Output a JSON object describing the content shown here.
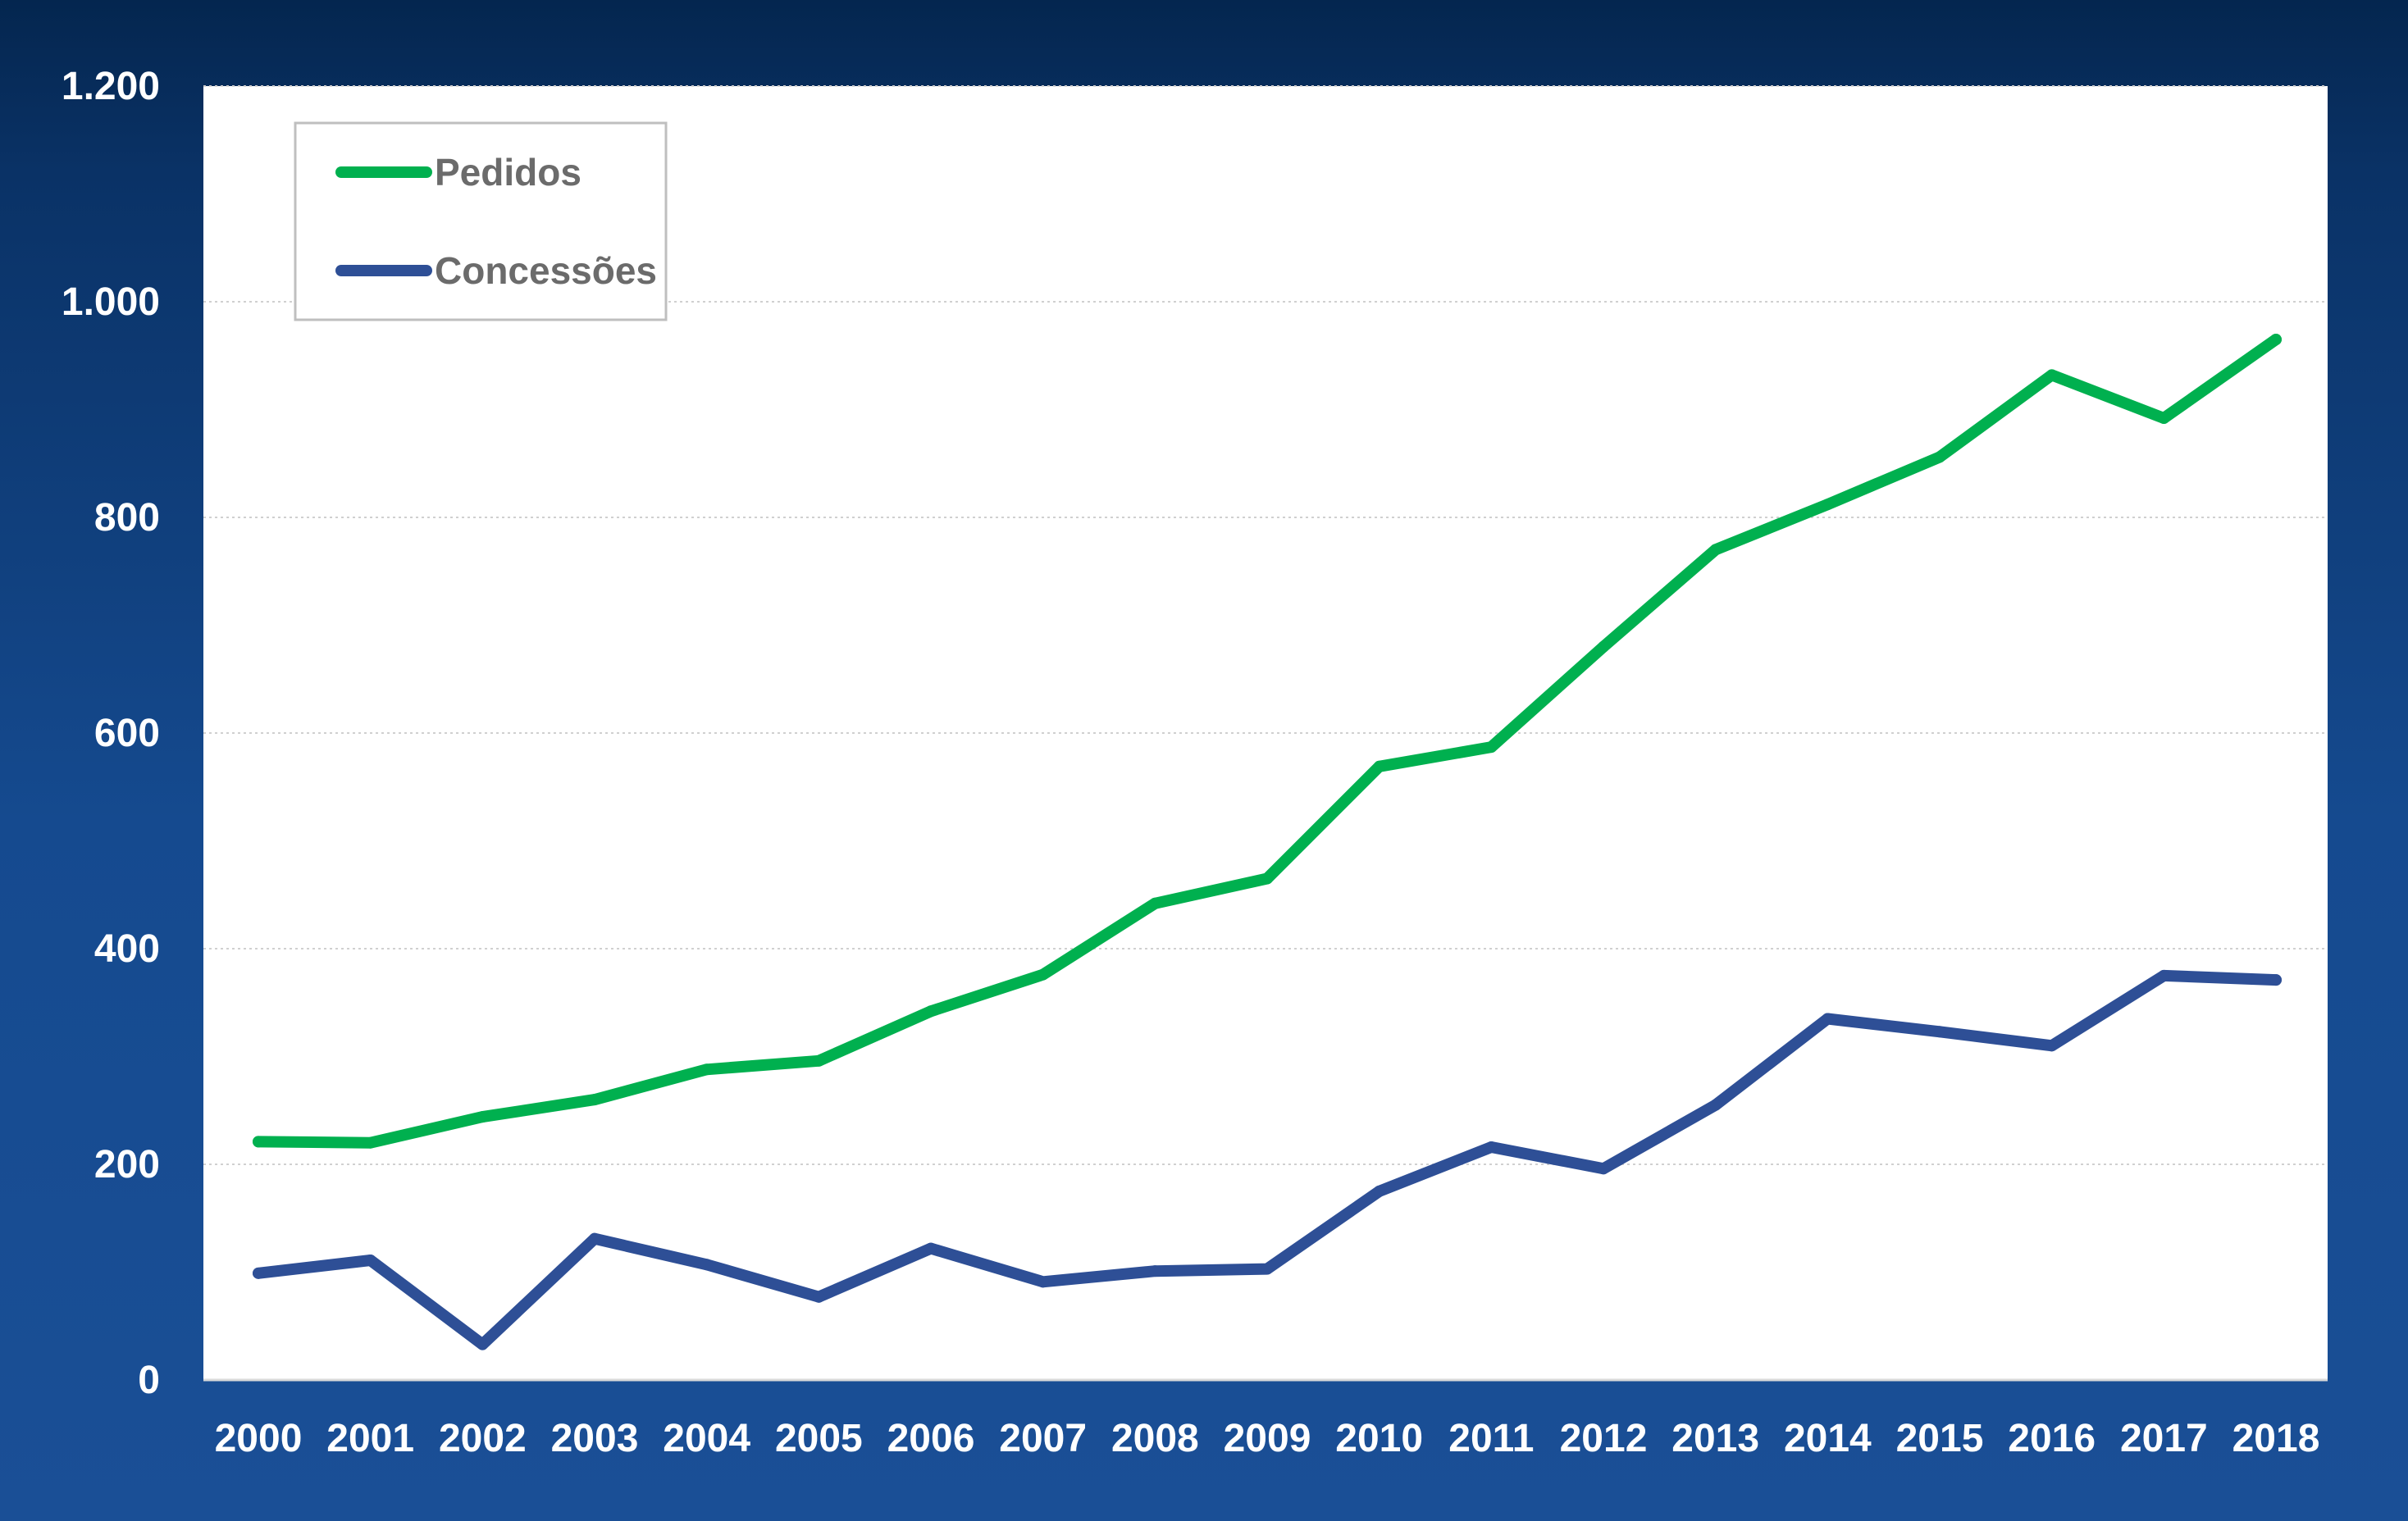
{
  "chart_data": {
    "type": "line",
    "x": [
      "2000",
      "2001",
      "2002",
      "2003",
      "2004",
      "2005",
      "2006",
      "2007",
      "2008",
      "2009",
      "2010",
      "2011",
      "2012",
      "2013",
      "2014",
      "2015",
      "2016",
      "2017",
      "2018"
    ],
    "series": [
      {
        "name": "Pedidos",
        "color": "#00b04f",
        "values": [
          221,
          220,
          244,
          260,
          288,
          296,
          342,
          376,
          442,
          465,
          569,
          587,
          680,
          770,
          812,
          856,
          932,
          892,
          965
        ]
      },
      {
        "name": "Concessões",
        "color": "#2e4f96",
        "values": [
          99,
          111,
          33,
          131,
          107,
          77,
          122,
          91,
          101,
          103,
          175,
          216,
          196,
          255,
          335,
          323,
          310,
          375,
          371
        ]
      }
    ],
    "ylim": [
      0,
      1200
    ],
    "yticks": [
      0,
      200,
      400,
      600,
      800,
      1000,
      1200
    ],
    "ytick_labels": [
      "0",
      "200",
      "400",
      "600",
      "800",
      "1.000",
      "1.200"
    ],
    "grid": true,
    "legend": "top-left",
    "title": "",
    "xlabel": "",
    "ylabel": ""
  }
}
